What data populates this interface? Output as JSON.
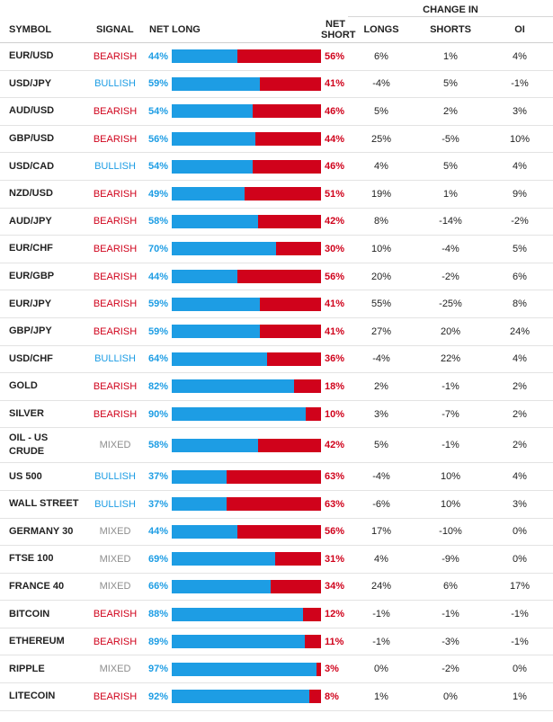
{
  "headers": {
    "symbol": "SYMBOL",
    "signal": "SIGNAL",
    "net_long": "NET LONG",
    "net_short": "NET SHORT",
    "change_in": "CHANGE IN",
    "longs": "LONGS",
    "shorts": "SHORTS",
    "oi": "OI"
  },
  "colors": {
    "long": "#1d9de4",
    "short": "#d0021b",
    "mixed": "#8d8d8d"
  },
  "rows": [
    {
      "symbol": "EUR/USD",
      "signal": "BEARISH",
      "net_long": "44%",
      "net_short": "56%",
      "long_fraction": 0.44,
      "longs": "6%",
      "shorts": "1%",
      "oi": "4%"
    },
    {
      "symbol": "USD/JPY",
      "signal": "BULLISH",
      "net_long": "59%",
      "net_short": "41%",
      "long_fraction": 0.59,
      "longs": "-4%",
      "shorts": "5%",
      "oi": "-1%"
    },
    {
      "symbol": "AUD/USD",
      "signal": "BEARISH",
      "net_long": "54%",
      "net_short": "46%",
      "long_fraction": 0.54,
      "longs": "5%",
      "shorts": "2%",
      "oi": "3%"
    },
    {
      "symbol": "GBP/USD",
      "signal": "BEARISH",
      "net_long": "56%",
      "net_short": "44%",
      "long_fraction": 0.56,
      "longs": "25%",
      "shorts": "-5%",
      "oi": "10%"
    },
    {
      "symbol": "USD/CAD",
      "signal": "BULLISH",
      "net_long": "54%",
      "net_short": "46%",
      "long_fraction": 0.54,
      "longs": "4%",
      "shorts": "5%",
      "oi": "4%"
    },
    {
      "symbol": "NZD/USD",
      "signal": "BEARISH",
      "net_long": "49%",
      "net_short": "51%",
      "long_fraction": 0.49,
      "longs": "19%",
      "shorts": "1%",
      "oi": "9%"
    },
    {
      "symbol": "AUD/JPY",
      "signal": "BEARISH",
      "net_long": "58%",
      "net_short": "42%",
      "long_fraction": 0.58,
      "longs": "8%",
      "shorts": "-14%",
      "oi": "-2%"
    },
    {
      "symbol": "EUR/CHF",
      "signal": "BEARISH",
      "net_long": "70%",
      "net_short": "30%",
      "long_fraction": 0.7,
      "longs": "10%",
      "shorts": "-4%",
      "oi": "5%"
    },
    {
      "symbol": "EUR/GBP",
      "signal": "BEARISH",
      "net_long": "44%",
      "net_short": "56%",
      "long_fraction": 0.44,
      "longs": "20%",
      "shorts": "-2%",
      "oi": "6%"
    },
    {
      "symbol": "EUR/JPY",
      "signal": "BEARISH",
      "net_long": "59%",
      "net_short": "41%",
      "long_fraction": 0.59,
      "longs": "55%",
      "shorts": "-25%",
      "oi": "8%"
    },
    {
      "symbol": "GBP/JPY",
      "signal": "BEARISH",
      "net_long": "59%",
      "net_short": "41%",
      "long_fraction": 0.59,
      "longs": "27%",
      "shorts": "20%",
      "oi": "24%"
    },
    {
      "symbol": "USD/CHF",
      "signal": "BULLISH",
      "net_long": "64%",
      "net_short": "36%",
      "long_fraction": 0.64,
      "longs": "-4%",
      "shorts": "22%",
      "oi": "4%"
    },
    {
      "symbol": "GOLD",
      "signal": "BEARISH",
      "net_long": "82%",
      "net_short": "18%",
      "long_fraction": 0.82,
      "longs": "2%",
      "shorts": "-1%",
      "oi": "2%"
    },
    {
      "symbol": "SILVER",
      "signal": "BEARISH",
      "net_long": "90%",
      "net_short": "10%",
      "long_fraction": 0.9,
      "longs": "3%",
      "shorts": "-7%",
      "oi": "2%"
    },
    {
      "symbol": "OIL - US CRUDE",
      "signal": "MIXED",
      "net_long": "58%",
      "net_short": "42%",
      "long_fraction": 0.58,
      "longs": "5%",
      "shorts": "-1%",
      "oi": "2%"
    },
    {
      "symbol": "US 500",
      "signal": "BULLISH",
      "net_long": "37%",
      "net_short": "63%",
      "long_fraction": 0.37,
      "longs": "-4%",
      "shorts": "10%",
      "oi": "4%"
    },
    {
      "symbol": "WALL STREET",
      "signal": "BULLISH",
      "net_long": "37%",
      "net_short": "63%",
      "long_fraction": 0.37,
      "longs": "-6%",
      "shorts": "10%",
      "oi": "3%"
    },
    {
      "symbol": "GERMANY 30",
      "signal": "MIXED",
      "net_long": "44%",
      "net_short": "56%",
      "long_fraction": 0.44,
      "longs": "17%",
      "shorts": "-10%",
      "oi": "0%"
    },
    {
      "symbol": "FTSE 100",
      "signal": "MIXED",
      "net_long": "69%",
      "net_short": "31%",
      "long_fraction": 0.69,
      "longs": "4%",
      "shorts": "-9%",
      "oi": "0%"
    },
    {
      "symbol": "FRANCE 40",
      "signal": "MIXED",
      "net_long": "66%",
      "net_short": "34%",
      "long_fraction": 0.66,
      "longs": "24%",
      "shorts": "6%",
      "oi": "17%"
    },
    {
      "symbol": "BITCOIN",
      "signal": "BEARISH",
      "net_long": "88%",
      "net_short": "12%",
      "long_fraction": 0.88,
      "longs": "-1%",
      "shorts": "-1%",
      "oi": "-1%"
    },
    {
      "symbol": "ETHEREUM",
      "signal": "BEARISH",
      "net_long": "89%",
      "net_short": "11%",
      "long_fraction": 0.89,
      "longs": "-1%",
      "shorts": "-3%",
      "oi": "-1%"
    },
    {
      "symbol": "RIPPLE",
      "signal": "MIXED",
      "net_long": "97%",
      "net_short": "3%",
      "long_fraction": 0.97,
      "longs": "0%",
      "shorts": "-2%",
      "oi": "0%"
    },
    {
      "symbol": "LITECOIN",
      "signal": "BEARISH",
      "net_long": "92%",
      "net_short": "8%",
      "long_fraction": 0.92,
      "longs": "1%",
      "shorts": "0%",
      "oi": "1%"
    }
  ]
}
